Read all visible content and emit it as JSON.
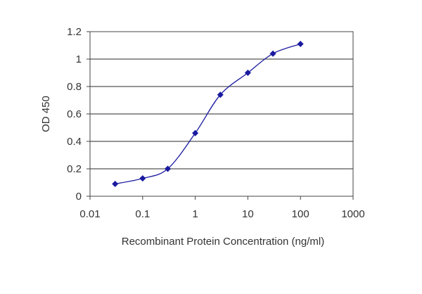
{
  "chart_data": {
    "type": "line",
    "xlabel": "Recombinant Protein Concentration (ng/ml)",
    "ylabel": "OD 450",
    "x_scale": "log",
    "xlim": [
      0.01,
      1000
    ],
    "ylim": [
      0,
      1.2
    ],
    "x_ticks": [
      "0.01",
      "0.1",
      "1",
      "10",
      "100",
      "1000"
    ],
    "y_ticks": [
      "0",
      "0.2",
      "0.4",
      "0.6",
      "0.8",
      "1",
      "1.2"
    ],
    "x_tick_values": [
      0.01,
      0.1,
      1,
      10,
      100,
      1000
    ],
    "y_tick_values": [
      0,
      0.2,
      0.4,
      0.6,
      0.8,
      1.0,
      1.2
    ],
    "grid": "horizontal",
    "legend": "none",
    "series": [
      {
        "x": [
          0.03,
          0.1,
          0.3,
          1,
          3,
          10,
          30,
          100
        ],
        "y": [
          0.09,
          0.13,
          0.2,
          0.46,
          0.74,
          0.9,
          1.04,
          1.11
        ],
        "color": "#1a1aa0"
      }
    ]
  }
}
